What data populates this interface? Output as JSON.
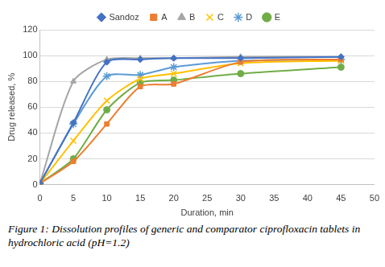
{
  "chart_data": {
    "type": "line",
    "caption": "Figure 1: Dissolution profiles of generic and comparator ciprofloxacin tablets in hydrochloric acid (pH=1.2)",
    "x_label": "Duration, min",
    "y_label": "Drug released, %",
    "x": [
      0,
      5,
      10,
      15,
      20,
      30,
      45
    ],
    "series": [
      {
        "name": "Sandoz",
        "color": "#4472c4",
        "marker": "diamond",
        "values": [
          1,
          48,
          95,
          97,
          98,
          98,
          99
        ]
      },
      {
        "name": "A",
        "color": "#ed7d31",
        "marker": "square",
        "values": [
          1,
          18,
          47,
          76,
          78,
          95,
          97
        ]
      },
      {
        "name": "B",
        "color": "#a5a5a5",
        "marker": "triangle",
        "values": [
          1,
          80,
          97,
          98,
          98,
          99,
          99
        ]
      },
      {
        "name": "C",
        "color": "#ffc000",
        "marker": "x",
        "values": [
          1,
          34,
          65,
          82,
          86,
          94,
          96
        ]
      },
      {
        "name": "D",
        "color": "#5b9bd5",
        "marker": "star",
        "values": [
          1,
          47,
          84,
          85,
          91,
          96,
          97
        ]
      },
      {
        "name": "E",
        "color": "#70ad47",
        "marker": "circle",
        "values": [
          1,
          20,
          58,
          79,
          81,
          86,
          91
        ]
      }
    ],
    "xlim": [
      0,
      50
    ],
    "xticks": [
      0,
      5,
      10,
      15,
      20,
      25,
      30,
      35,
      40,
      45,
      50
    ],
    "ylim": [
      0,
      120
    ],
    "yticks": [
      0,
      20,
      40,
      60,
      80,
      100,
      120
    ],
    "grid": true,
    "legend": "top"
  }
}
